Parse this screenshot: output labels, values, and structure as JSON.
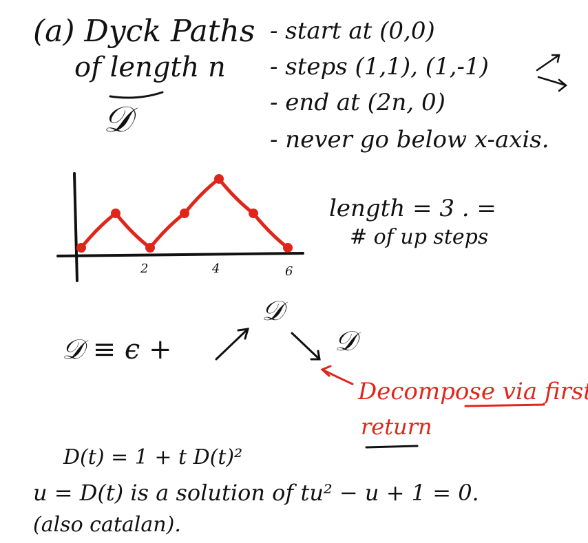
{
  "title": {
    "line1": "(a) Dyck Paths",
    "line2": "of length n",
    "symbol": "𝒟"
  },
  "conditions": [
    "- start at (0,0)",
    "- steps (1,1), (1,-1)",
    "- end at (2n, 0)",
    "- never go below x-axis."
  ],
  "graph": {
    "x_ticks": [
      "2",
      "4",
      "6"
    ],
    "note_line1": "length = 3 . =",
    "note_line2": "# of up steps",
    "path_points": [
      [
        0,
        0
      ],
      [
        1,
        1
      ],
      [
        2,
        0
      ],
      [
        3,
        1
      ],
      [
        4,
        2
      ],
      [
        5,
        1
      ],
      [
        6,
        0
      ]
    ],
    "x_range": [
      0,
      6
    ],
    "y_range": [
      0,
      2
    ],
    "path_color": "#e0261b"
  },
  "decomposition": {
    "lhs": "𝒟 ≡ ϵ +",
    "top_symbol": "𝒟",
    "right_symbol": "𝒟",
    "note_line1": "Decompose via first",
    "note_line2": "return",
    "note_color": "#e0261b"
  },
  "equations": {
    "line1": "D(t) = 1 + t D(t)²",
    "line2": "u = D(t) is a solution of tu² − u + 1 = 0.",
    "line3": "(also catalan)."
  }
}
